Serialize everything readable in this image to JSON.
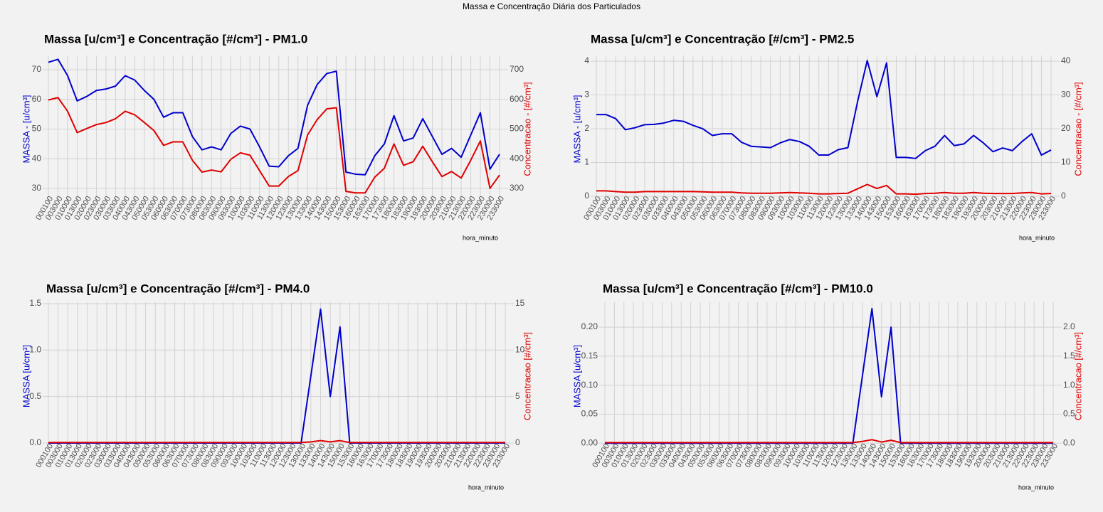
{
  "page_title": "Massa e Concentração Diária dos Particulados",
  "chart_data": [
    {
      "type": "line",
      "title": "Massa [u/cm³] e Concentração [#/cm³] - PM1.0",
      "xlabel": "hora_minuto",
      "ylabel": "MASSA - [u/cm³]",
      "y2label": "Concentracao - [#/cm³]",
      "categories": [
        "000100",
        "003000",
        "010000",
        "013000",
        "020000",
        "023000",
        "030000",
        "033000",
        "040000",
        "043000",
        "050000",
        "053000",
        "060000",
        "063000",
        "070000",
        "073000",
        "080000",
        "083000",
        "090000",
        "093000",
        "100000",
        "103000",
        "110000",
        "113000",
        "120000",
        "123000",
        "130000",
        "133000",
        "140000",
        "143000",
        "150000",
        "153000",
        "160000",
        "163000",
        "170000",
        "173000",
        "180000",
        "183000",
        "190000",
        "193000",
        "200000",
        "203000",
        "210000",
        "213000",
        "220000",
        "223000",
        "230000",
        "233000"
      ],
      "series": [
        {
          "color": "#0000cc",
          "values": [
            72.5,
            73.5,
            68,
            59.5,
            61,
            63,
            63.5,
            64.5,
            68,
            66.5,
            63,
            60,
            54,
            55.5,
            55.5,
            47.5,
            43,
            44,
            43,
            48.5,
            51,
            50,
            44,
            37.5,
            37.3,
            41,
            43.5,
            58,
            65,
            68.7,
            69.5,
            35.5,
            34.8,
            34.6,
            41,
            45,
            54.5,
            46,
            47,
            53.5,
            47.5,
            41.5,
            43.5,
            40.5,
            48,
            55.5,
            36.5,
            41.5
          ]
        },
        {
          "color": "#e00000",
          "axis": "y2",
          "values": [
            598,
            606,
            560,
            488,
            502,
            515,
            522,
            535,
            560,
            548,
            522,
            495,
            445,
            457,
            457,
            395,
            355,
            362,
            356,
            398,
            420,
            412,
            360,
            308,
            308,
            340,
            360,
            480,
            532,
            568,
            572,
            290,
            285,
            285,
            338,
            368,
            450,
            378,
            390,
            442,
            390,
            340,
            357,
            335,
            395,
            460,
            300,
            345
          ]
        }
      ],
      "ylim": [
        25.2,
        74.8
      ],
      "yticks": [
        30,
        40,
        50,
        60,
        70
      ],
      "y2lim": [
        252,
        748
      ],
      "y2ticks": [
        300,
        400,
        500,
        600,
        700
      ],
      "grid": true
    },
    {
      "type": "line",
      "title": "Massa [u/cm³] e Concentração [#/cm³] - PM2.5",
      "xlabel": "hora_minuto",
      "ylabel": "MASSA - [u/cm³]",
      "y2label": "Concentracao - [#/cm³]",
      "categories": [
        "000100",
        "003000",
        "010000",
        "013000",
        "020000",
        "023000",
        "030000",
        "033000",
        "040000",
        "043000",
        "050000",
        "053000",
        "060000",
        "063000",
        "070000",
        "073000",
        "080000",
        "083000",
        "090000",
        "093000",
        "100000",
        "103000",
        "110000",
        "113000",
        "120000",
        "123000",
        "130000",
        "133000",
        "140000",
        "143000",
        "150000",
        "153000",
        "160000",
        "163000",
        "170000",
        "173000",
        "180000",
        "183000",
        "190000",
        "193000",
        "200000",
        "203000",
        "210000",
        "213000",
        "220000",
        "223000",
        "230000",
        "233000"
      ],
      "series": [
        {
          "color": "#0000cc",
          "values": [
            2.42,
            2.42,
            2.3,
            1.97,
            2.03,
            2.12,
            2.13,
            2.17,
            2.25,
            2.22,
            2.1,
            2.0,
            1.8,
            1.85,
            1.85,
            1.6,
            1.48,
            1.46,
            1.44,
            1.58,
            1.68,
            1.62,
            1.48,
            1.22,
            1.22,
            1.38,
            1.44,
            2.8,
            4.02,
            2.95,
            3.95,
            1.15,
            1.15,
            1.12,
            1.35,
            1.48,
            1.8,
            1.5,
            1.55,
            1.8,
            1.58,
            1.32,
            1.43,
            1.35,
            1.62,
            1.85,
            1.22,
            1.37
          ]
        },
        {
          "color": "#e00000",
          "axis": "y2",
          "values": [
            1.6,
            1.6,
            1.4,
            1.2,
            1.2,
            1.4,
            1.4,
            1.4,
            1.4,
            1.4,
            1.4,
            1.3,
            1.2,
            1.2,
            1.2,
            1.0,
            0.9,
            0.9,
            0.9,
            1.0,
            1.1,
            1.0,
            0.9,
            0.7,
            0.7,
            0.8,
            0.9,
            2.2,
            3.5,
            2.3,
            3.2,
            0.7,
            0.7,
            0.6,
            0.8,
            0.9,
            1.1,
            0.9,
            0.9,
            1.1,
            0.9,
            0.8,
            0.8,
            0.8,
            1.0,
            1.1,
            0.7,
            0.8
          ]
        }
      ],
      "ylim": [
        -0.19,
        4.17
      ],
      "yticks": [
        0,
        1,
        2,
        3,
        4
      ],
      "y2lim": [
        -1.9,
        41.7
      ],
      "y2ticks": [
        0,
        10,
        20,
        30,
        40
      ],
      "grid": true
    },
    {
      "type": "line",
      "title": "Massa [u/cm³] e Concentração [#/cm³] - PM4.0",
      "xlabel": "hora_minuto",
      "ylabel": "MASSA [u/cm³]",
      "y2label": "Concentracao [#/cm³]",
      "categories": [
        "000100",
        "003000",
        "010000",
        "013000",
        "020000",
        "023000",
        "030000",
        "033000",
        "040000",
        "043000",
        "050000",
        "053000",
        "060000",
        "063000",
        "070000",
        "073000",
        "080000",
        "083000",
        "090000",
        "093000",
        "100000",
        "103000",
        "110000",
        "113000",
        "120000",
        "123000",
        "130000",
        "133000",
        "140000",
        "143000",
        "150000",
        "153000",
        "160000",
        "163000",
        "170000",
        "173000",
        "180000",
        "183000",
        "190000",
        "193000",
        "200000",
        "203000",
        "210000",
        "213000",
        "220000",
        "223000",
        "230000",
        "233000"
      ],
      "series": [
        {
          "color": "#0000cc",
          "values": [
            0,
            0,
            0,
            0,
            0,
            0,
            0,
            0,
            0,
            0,
            0,
            0,
            0,
            0,
            0,
            0,
            0,
            0,
            0,
            0,
            0,
            0,
            0,
            0,
            0,
            0,
            0,
            0.72,
            1.44,
            0.5,
            1.25,
            0,
            0,
            0,
            0,
            0,
            0,
            0,
            0,
            0,
            0,
            0,
            0,
            0,
            0,
            0,
            0,
            0
          ]
        },
        {
          "color": "#e00000",
          "axis": "y2",
          "values": [
            0.05,
            0.05,
            0.05,
            0.05,
            0.05,
            0.05,
            0.05,
            0.05,
            0.05,
            0.05,
            0.05,
            0.05,
            0.05,
            0.05,
            0.05,
            0.05,
            0.05,
            0.05,
            0.05,
            0.05,
            0.05,
            0.05,
            0.05,
            0.05,
            0.05,
            0.05,
            0.05,
            0.12,
            0.25,
            0.12,
            0.25,
            0.05,
            0.05,
            0.05,
            0.05,
            0.05,
            0.05,
            0.05,
            0.05,
            0.05,
            0.05,
            0.05,
            0.05,
            0.05,
            0.05,
            0.05,
            0.05,
            0.05
          ]
        }
      ],
      "ylim": [
        -0.077,
        1.515
      ],
      "yticks": [
        {
          "value": 0,
          "label": "0.0"
        },
        0.5,
        {
          "value": 1,
          "label": "1.0"
        },
        1.5
      ],
      "y2lim": [
        -0.77,
        15.15
      ],
      "y2ticks": [
        0,
        5,
        10,
        15
      ],
      "grid": true
    },
    {
      "type": "line",
      "title": "Massa [u/cm³] e Concentração [#/cm³] - PM10.0",
      "xlabel": "hora_minuto",
      "ylabel": "MASSA [u/cm³]",
      "y2label": "Concentracao [#/cm³]",
      "categories": [
        "000100",
        "003000",
        "010000",
        "013000",
        "020000",
        "023000",
        "030000",
        "033000",
        "040000",
        "043000",
        "050000",
        "053000",
        "060000",
        "063000",
        "070000",
        "073000",
        "080000",
        "083000",
        "090000",
        "093000",
        "100000",
        "103000",
        "110000",
        "113000",
        "120000",
        "123000",
        "130000",
        "133000",
        "140000",
        "143000",
        "150000",
        "153000",
        "160000",
        "163000",
        "170000",
        "173000",
        "180000",
        "183000",
        "190000",
        "193000",
        "200000",
        "203000",
        "210000",
        "213000",
        "220000",
        "223000",
        "230000",
        "233000"
      ],
      "series": [
        {
          "color": "#0000cc",
          "values": [
            0,
            0,
            0,
            0,
            0,
            0,
            0,
            0,
            0,
            0,
            0,
            0,
            0,
            0,
            0,
            0,
            0,
            0,
            0,
            0,
            0,
            0,
            0,
            0,
            0,
            0,
            0,
            0.116,
            0.232,
            0.08,
            0.2,
            0,
            0,
            0,
            0,
            0,
            0,
            0,
            0,
            0,
            0,
            0,
            0,
            0,
            0,
            0,
            0,
            0
          ]
        },
        {
          "color": "#e00000",
          "axis": "y2",
          "values": [
            0.01,
            0.01,
            0.01,
            0.01,
            0.01,
            0.01,
            0.01,
            0.01,
            0.01,
            0.01,
            0.01,
            0.01,
            0.01,
            0.01,
            0.01,
            0.01,
            0.01,
            0.01,
            0.01,
            0.01,
            0.01,
            0.01,
            0.01,
            0.01,
            0.01,
            0.01,
            0.01,
            0.03,
            0.06,
            0.02,
            0.05,
            0.01,
            0.01,
            0.01,
            0.01,
            0.01,
            0.01,
            0.01,
            0.01,
            0.01,
            0.01,
            0.01,
            0.01,
            0.01,
            0.01,
            0.01,
            0.01,
            0.01
          ]
        }
      ],
      "ylim": [
        -0.012,
        0.243
      ],
      "yticks": [
        {
          "value": 0,
          "label": "0.00"
        },
        {
          "value": 0.05,
          "label": "0.05"
        },
        {
          "value": 0.1,
          "label": "0.10"
        },
        {
          "value": 0.15,
          "label": "0.15"
        },
        {
          "value": 0.2,
          "label": "0.20"
        }
      ],
      "y2lim": [
        -0.12,
        2.43
      ],
      "y2ticks": [
        {
          "value": 0,
          "label": "0.0"
        },
        {
          "value": 0.5,
          "label": "0.5"
        },
        {
          "value": 1,
          "label": "1.0"
        },
        {
          "value": 1.5,
          "label": "1.5"
        },
        {
          "value": 2,
          "label": "2.0"
        }
      ],
      "grid": true
    }
  ]
}
